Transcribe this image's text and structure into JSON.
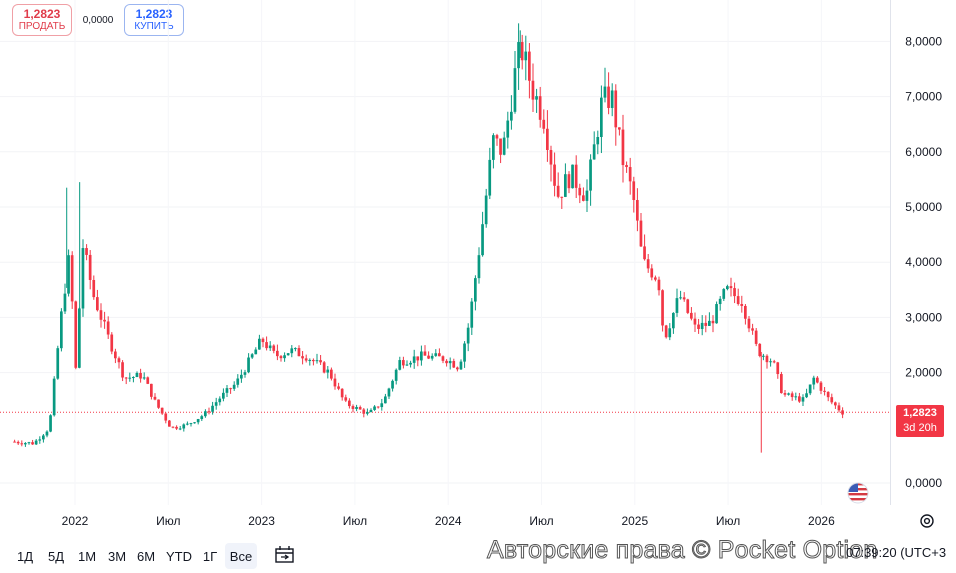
{
  "trade": {
    "sell_price": "1,2823",
    "sell_label": "ПРОДАТЬ",
    "spread": "0,0000",
    "buy_price": "1,2823",
    "buy_label": "КУПИТЬ"
  },
  "price_tag": {
    "price": "1,2823",
    "countdown": "3d 20h"
  },
  "bottom_bar": {
    "ranges": [
      "1Д",
      "5Д",
      "1М",
      "3М",
      "6М",
      "YTD",
      "1Г",
      "Все"
    ],
    "active_range": "Все",
    "watermark": "Авторские права © Pocket Option",
    "clock": "07:39:20 (UTC+3"
  },
  "icons": {
    "compare": "compare-icon",
    "settings": "gear-icon",
    "flag": "us-flag-icon"
  },
  "colors": {
    "up": "#089981",
    "down": "#f23645",
    "accent": "#2962ff"
  },
  "chart_data": {
    "type": "candlestick",
    "x_type": "date",
    "y_axis_ticks": [
      "8,0000",
      "7,0000",
      "6,0000",
      "5,0000",
      "4,0000",
      "3,0000",
      "2,0000",
      "0,0000"
    ],
    "x_axis_ticks": [
      "2022",
      "Июл",
      "2023",
      "Июл",
      "2024",
      "Июл",
      "2025",
      "Июл",
      "2026"
    ],
    "ylim": [
      0,
      8.3
    ],
    "xlim": [
      "2021-09",
      "2026-03"
    ],
    "last_price": 1.2823,
    "price_path": [
      [
        "2021-09-01",
        0.75
      ],
      [
        "2021-10-15",
        0.72
      ],
      [
        "2021-11-15",
        1.0
      ],
      [
        "2021-12-10",
        3.2
      ],
      [
        "2021-12-25",
        4.2
      ],
      [
        "2022-01-05",
        1.9
      ],
      [
        "2022-01-20",
        4.3
      ],
      [
        "2022-02-10",
        3.4
      ],
      [
        "2022-03-10",
        2.6
      ],
      [
        "2022-04-10",
        1.9
      ],
      [
        "2022-05-15",
        1.95
      ],
      [
        "2022-06-10",
        1.45
      ],
      [
        "2022-07-10",
        1.0
      ],
      [
        "2022-08-10",
        1.05
      ],
      [
        "2022-09-15",
        1.25
      ],
      [
        "2022-10-15",
        1.55
      ],
      [
        "2022-11-15",
        1.8
      ],
      [
        "2023-01-05",
        2.6
      ],
      [
        "2023-02-01",
        2.3
      ],
      [
        "2023-03-01",
        2.4
      ],
      [
        "2023-04-01",
        2.3
      ],
      [
        "2023-05-15",
        2.0
      ],
      [
        "2023-06-15",
        1.45
      ],
      [
        "2023-08-01",
        1.25
      ],
      [
        "2023-09-01",
        1.5
      ],
      [
        "2023-10-01",
        2.2
      ],
      [
        "2023-11-15",
        2.3
      ],
      [
        "2024-01-01",
        2.25
      ],
      [
        "2024-01-25",
        2.1
      ],
      [
        "2024-02-15",
        2.9
      ],
      [
        "2024-03-01",
        4.0
      ],
      [
        "2024-03-15",
        5.0
      ],
      [
        "2024-04-01",
        6.2
      ],
      [
        "2024-04-20",
        6.0
      ],
      [
        "2024-05-15",
        7.5
      ],
      [
        "2024-05-25",
        7.9
      ],
      [
        "2024-06-15",
        7.2
      ],
      [
        "2024-07-10",
        6.6
      ],
      [
        "2024-08-05",
        5.2
      ],
      [
        "2024-09-01",
        5.6
      ],
      [
        "2024-10-01",
        5.2
      ],
      [
        "2024-11-01",
        6.9
      ],
      [
        "2024-11-20",
        7.0
      ],
      [
        "2024-12-10",
        5.9
      ],
      [
        "2025-01-01",
        5.2
      ],
      [
        "2025-01-20",
        4.0
      ],
      [
        "2025-02-20",
        3.7
      ],
      [
        "2025-03-01",
        2.6
      ],
      [
        "2025-04-01",
        3.4
      ],
      [
        "2025-05-01",
        2.8
      ],
      [
        "2025-06-01",
        2.9
      ],
      [
        "2025-07-01",
        3.5
      ],
      [
        "2025-08-01",
        3.3
      ],
      [
        "2025-09-01",
        2.4
      ],
      [
        "2025-10-01",
        2.2
      ],
      [
        "2025-10-20",
        1.6
      ],
      [
        "2025-12-01",
        1.5
      ],
      [
        "2025-12-20",
        1.9
      ],
      [
        "2026-01-20",
        1.5
      ],
      [
        "2026-02-15",
        1.28
      ]
    ],
    "notable_extremes": [
      {
        "date": "2021-12-15",
        "high": 5.35
      },
      {
        "date": "2022-01-10",
        "high": 5.45
      },
      {
        "date": "2024-05-20",
        "high": 8.2
      },
      {
        "date": "2025-09-05",
        "low": 0.55
      }
    ]
  }
}
